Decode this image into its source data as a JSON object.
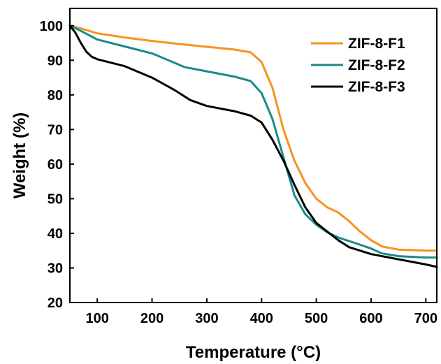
{
  "chart_data": {
    "type": "line",
    "title": "",
    "xlabel": "Temperature (°C)",
    "ylabel": "Weight (%)",
    "xlim": [
      50,
      720
    ],
    "ylim": [
      20,
      105
    ],
    "xticks": [
      100,
      200,
      300,
      400,
      500,
      600,
      700
    ],
    "yticks": [
      20,
      30,
      40,
      50,
      60,
      70,
      80,
      90,
      100
    ],
    "grid": false,
    "legend_position": "top-right",
    "series": [
      {
        "name": "ZIF-8-F1",
        "color": "#F7931E",
        "x": [
          50,
          70,
          100,
          150,
          200,
          250,
          300,
          350,
          380,
          400,
          420,
          440,
          460,
          480,
          500,
          520,
          540,
          560,
          580,
          600,
          620,
          650,
          700,
          720
        ],
        "y": [
          100,
          99.2,
          97.8,
          96.6,
          95.6,
          94.7,
          93.9,
          93.1,
          92.3,
          89.5,
          82,
          70,
          61,
          54.5,
          50,
          47.5,
          46,
          43.5,
          40.5,
          38,
          36.2,
          35.3,
          35,
          35
        ]
      },
      {
        "name": "ZIF-8-F2",
        "color": "#1A8A8A",
        "x": [
          50,
          70,
          100,
          150,
          200,
          230,
          260,
          300,
          350,
          380,
          400,
          420,
          440,
          460,
          480,
          500,
          520,
          540,
          580,
          600,
          620,
          650,
          700,
          720
        ],
        "y": [
          100,
          98.5,
          96,
          94,
          92,
          90,
          88,
          86.8,
          85.3,
          84,
          80.5,
          73,
          62,
          51,
          45.5,
          42.5,
          40.3,
          38.8,
          36.7,
          35.6,
          34.2,
          33.4,
          33,
          33
        ]
      },
      {
        "name": "ZIF-8-F3",
        "color": "#000000",
        "x": [
          50,
          60,
          70,
          80,
          90,
          100,
          150,
          200,
          240,
          270,
          300,
          350,
          380,
          400,
          420,
          440,
          460,
          480,
          500,
          520,
          540,
          560,
          600,
          650,
          700,
          720
        ],
        "y": [
          100,
          98,
          95,
          92.5,
          91,
          90.3,
          88.3,
          85,
          81.5,
          78.5,
          76.8,
          75.3,
          74,
          72,
          67,
          61,
          54,
          47.5,
          43,
          40.5,
          38,
          36,
          34,
          32.5,
          31,
          30.3
        ]
      }
    ]
  }
}
